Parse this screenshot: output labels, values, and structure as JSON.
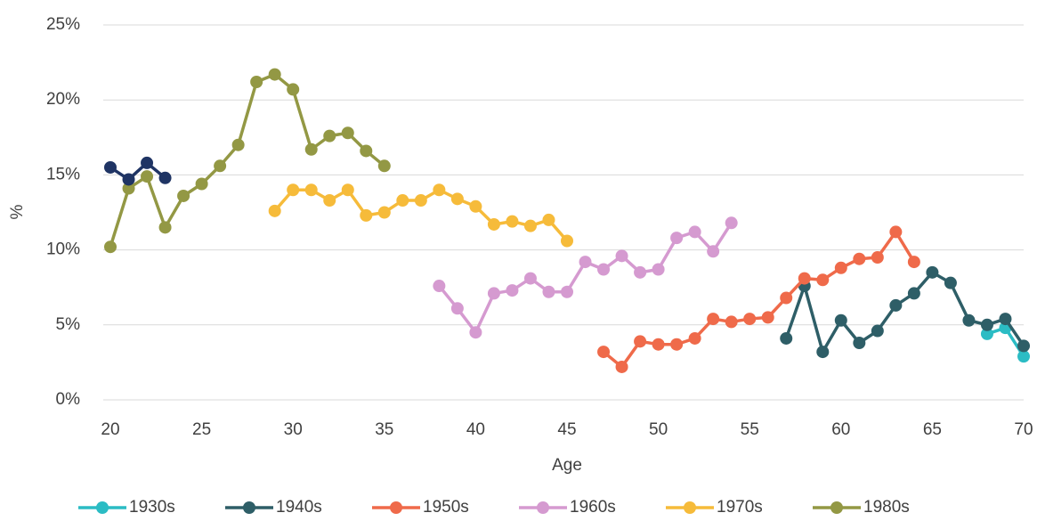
{
  "chart_data": {
    "type": "line",
    "xlabel": "Age",
    "ylabel": "%",
    "xlim": [
      20,
      70
    ],
    "xticks": [
      20,
      25,
      30,
      35,
      40,
      45,
      50,
      55,
      60,
      65,
      70
    ],
    "ylim": [
      0,
      25
    ],
    "yticks": [
      {
        "value": 0,
        "label": "0%"
      },
      {
        "value": 5,
        "label": "5%"
      },
      {
        "value": 10,
        "label": "10%"
      },
      {
        "value": 15,
        "label": "15%"
      },
      {
        "value": 20,
        "label": "20%"
      },
      {
        "value": 25,
        "label": "25%"
      }
    ],
    "grid": true,
    "legend": "bottom",
    "series": [
      {
        "name": "1930s",
        "color": "#2bbcc4",
        "x": [
          68,
          69,
          70
        ],
        "values": [
          4.4,
          4.8,
          2.9
        ]
      },
      {
        "name": "1940s",
        "color": "#2e5e67",
        "x": [
          57,
          58,
          59,
          60,
          61,
          62,
          63,
          64,
          65,
          66,
          67,
          68,
          69,
          70
        ],
        "values": [
          4.1,
          7.6,
          3.2,
          5.3,
          3.8,
          4.6,
          6.3,
          7.1,
          8.5,
          7.8,
          5.3,
          5.0,
          5.4,
          3.6
        ]
      },
      {
        "name": "1950s",
        "color": "#ef6a4a",
        "x": [
          47,
          48,
          49,
          50,
          51,
          52,
          53,
          54,
          55,
          56,
          57,
          58,
          59,
          60,
          61,
          62,
          63,
          64
        ],
        "values": [
          3.2,
          2.2,
          3.9,
          3.7,
          3.7,
          4.1,
          5.4,
          5.2,
          5.4,
          5.5,
          6.8,
          8.1,
          8.0,
          8.8,
          9.4,
          9.5,
          11.2,
          9.2
        ]
      },
      {
        "name": "1960s",
        "color": "#d59ad0",
        "x": [
          38,
          39,
          40,
          41,
          42,
          43,
          44,
          45,
          46,
          47,
          48,
          49,
          50,
          51,
          52,
          53,
          54
        ],
        "values": [
          7.6,
          6.1,
          4.5,
          7.1,
          7.3,
          8.1,
          7.2,
          7.2,
          9.2,
          8.7,
          9.6,
          8.5,
          8.7,
          10.8,
          11.2,
          9.9,
          11.8
        ]
      },
      {
        "name": "1970s",
        "color": "#f6bb3a",
        "x": [
          29,
          30,
          31,
          32,
          33,
          34,
          35,
          36,
          37,
          38,
          39,
          40,
          41,
          42,
          43,
          44,
          45
        ],
        "values": [
          12.6,
          14.0,
          14.0,
          13.3,
          14.0,
          12.3,
          12.5,
          13.3,
          13.3,
          14.0,
          13.4,
          12.9,
          11.7,
          11.9,
          11.6,
          12.0,
          10.6
        ]
      },
      {
        "name": "1980s",
        "color": "#939844",
        "x": [
          20,
          21,
          22,
          23,
          24,
          25,
          26,
          27,
          28,
          29,
          30,
          31,
          32,
          33,
          34,
          35
        ],
        "values": [
          10.2,
          14.1,
          14.9,
          11.5,
          13.6,
          14.4,
          15.6,
          17.0,
          21.2,
          21.7,
          20.7,
          16.7,
          17.6,
          17.8,
          16.6,
          15.6
        ]
      },
      {
        "color": "#1f3464",
        "x": [
          20,
          21,
          22,
          23
        ],
        "values": [
          15.5,
          14.7,
          15.8,
          14.8
        ]
      }
    ]
  }
}
